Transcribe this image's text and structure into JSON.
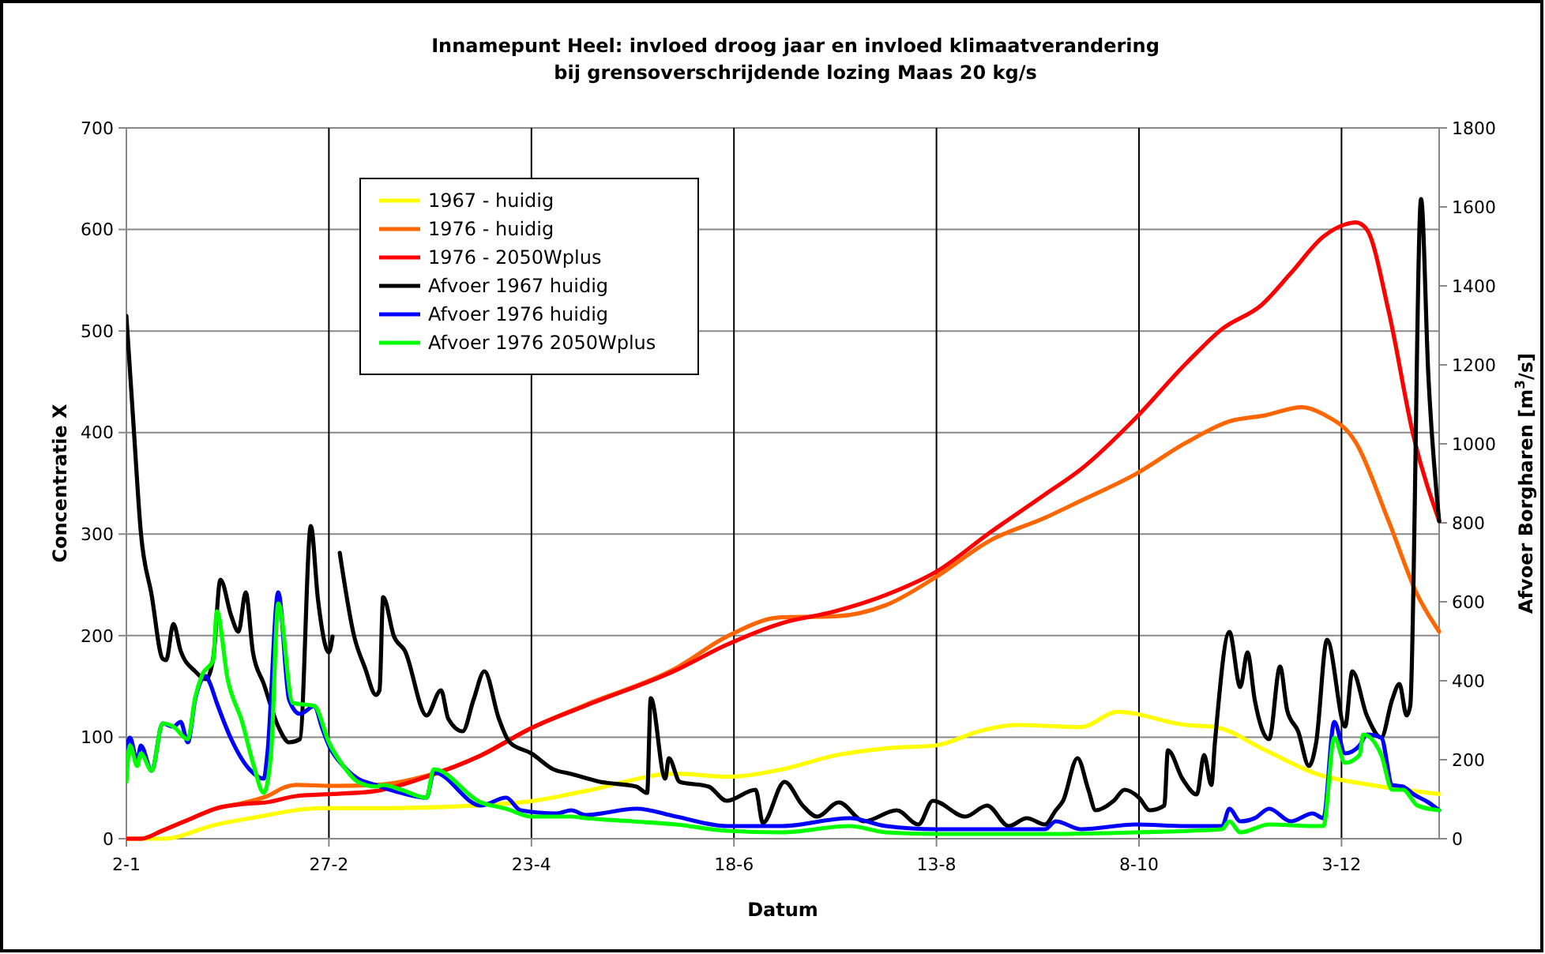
{
  "chart_data": {
    "type": "line",
    "title": "Innamepunt Heel: invloed droog jaar en invloed klimaatverandering\nbij grensoverschrijdende lozing Maas 20 kg/s",
    "xlabel": "Datum",
    "ylabel": "Concentratie X",
    "y2label": "Afvoer Borgharen [m$^{3}$/s]",
    "xlim": [
      "--01-02",
      "--12-30"
    ],
    "xticks": [
      {
        "value": "--01-02",
        "label": "2-1"
      },
      {
        "value": "--02-27",
        "label": "27-2"
      },
      {
        "value": "--04-23",
        "label": "23-4"
      },
      {
        "value": "--06-18",
        "label": "18-6"
      },
      {
        "value": "--08-13",
        "label": "13-8"
      },
      {
        "value": "--10-08",
        "label": "8-10"
      },
      {
        "value": "--12-03",
        "label": "3-12"
      }
    ],
    "ylim": [
      0,
      700
    ],
    "yticks": [
      0,
      100,
      200,
      300,
      400,
      500,
      600,
      700
    ],
    "y2lim": [
      0,
      1800
    ],
    "y2ticks": [
      0,
      200,
      400,
      600,
      800,
      1000,
      1200,
      1400,
      1600,
      1800
    ],
    "grid": true,
    "legend": "top left",
    "marker": "none",
    "line_style": "solid",
    "series": [
      {
        "name": "1967 - huidig",
        "color": "#ffff00",
        "x": [
          "--01-02",
          "--01-12",
          "--01-27",
          "--02-05",
          "--02-25",
          "--03-11",
          "--04-09",
          "--04-23",
          "--05-08",
          "--06-02",
          "--06-16",
          "--07-01",
          "--07-16",
          "--07-30",
          "--08-13",
          "--08-25",
          "--09-04",
          "--09-22",
          "--10-02",
          "--10-21",
          "--10-29",
          "--11-12",
          "--11-26",
          "--12-11",
          "--12-30"
        ],
        "values": [
          0,
          0,
          14,
          20,
          30,
          30,
          33,
          37,
          47,
          64,
          61,
          68,
          82,
          89,
          92,
          106,
          112,
          110,
          125,
          112,
          110,
          87,
          64,
          53,
          44
        ]
      },
      {
        "name": "1976 - huidig",
        "color": "#ff6600",
        "x": [
          "--01-02",
          "--01-06",
          "--01-12",
          "--01-20",
          "--01-27",
          "--02-03",
          "--02-10",
          "--02-15",
          "--02-18",
          "--02-28",
          "--03-11",
          "--03-25",
          "--04-09",
          "--04-23",
          "--05-08",
          "--06-02",
          "--06-16",
          "--07-01",
          "--07-16",
          "--07-30",
          "--08-13",
          "--08-28",
          "--09-12",
          "--09-22",
          "--10-07",
          "--10-21",
          "--11-02",
          "--11-12",
          "--11-22",
          "--11-28",
          "--12-07",
          "--12-16",
          "--12-24",
          "--12-30"
        ],
        "values": [
          0,
          0,
          8,
          20,
          30,
          35,
          42,
          51,
          53,
          52,
          53,
          62,
          82,
          109,
          132,
          168,
          199,
          218,
          219,
          230,
          258,
          294,
          316,
          333,
          359,
          390,
          411,
          417,
          425,
          418,
          390,
          313,
          240,
          204
        ]
      },
      {
        "name": "1976 - 2050Wplus",
        "color": "#ff0000",
        "x": [
          "--01-02",
          "--01-06",
          "--01-12",
          "--01-20",
          "--01-27",
          "--02-03",
          "--02-10",
          "--02-18",
          "--02-28",
          "--03-11",
          "--03-25",
          "--04-09",
          "--04-23",
          "--05-08",
          "--06-02",
          "--06-16",
          "--07-01",
          "--07-16",
          "--07-30",
          "--08-13",
          "--08-28",
          "--09-12",
          "--09-22",
          "--10-07",
          "--10-21",
          "--10-31",
          "--11-11",
          "--11-19",
          "--11-28",
          "--12-04",
          "--12-07",
          "--12-10",
          "--12-16",
          "--12-23",
          "--12-30"
        ],
        "values": [
          0,
          0,
          8,
          20,
          30,
          34,
          36,
          42,
          44,
          47,
          61,
          82,
          109,
          131,
          166,
          191,
          212,
          224,
          240,
          263,
          302,
          339,
          364,
          414,
          468,
          502,
          526,
          557,
          593,
          605,
          607,
          600,
          520,
          395,
          313
        ]
      },
      {
        "name": "Afvoer 1967 huidig",
        "color": "#000000",
        "axis": "y2",
        "x": [
          "--01-02",
          "--01-04",
          "--01-06",
          "--01-09",
          "--01-12",
          "--01-13",
          "--01-15",
          "--01-17",
          "--01-21",
          "--01-24",
          "--01-26",
          "--01-28",
          "--01-31",
          "--02-02",
          "--02-04",
          "--02-06",
          "--02-09",
          "--02-13",
          "--02-16",
          "--02-19",
          "--02-22",
          "--02-24",
          "--02-27",
          "--02-28",
          "--02-29",
          "--03-01",
          "--03-05",
          "--03-08",
          "--03-11",
          "--03-12",
          "--03-13",
          "--03-16",
          "--03-19",
          "--03-25",
          "--03-29",
          "--03-31",
          "--04-04",
          "--04-07",
          "--04-10",
          "--04-14",
          "--04-17",
          "--04-23",
          "--04-29",
          "--05-04",
          "--05-12",
          "--05-22",
          "--05-25",
          "--05-26",
          "--05-30",
          "--05-31",
          "--06-03",
          "--06-11",
          "--06-16",
          "--06-24",
          "--06-26",
          "--07-02",
          "--07-07",
          "--07-11",
          "--07-17",
          "--07-24",
          "--08-02",
          "--08-08",
          "--08-12",
          "--08-21",
          "--08-27",
          "--09-02",
          "--09-07",
          "--09-12",
          "--09-15",
          "--09-17",
          "--09-21",
          "--09-24",
          "--09-26",
          "--10-01",
          "--10-04",
          "--10-08",
          "--10-11",
          "--10-15",
          "--10-16",
          "--10-20",
          "--10-24",
          "--10-26",
          "--10-28",
          "--10-29",
          "--11-02",
          "--11-05",
          "--11-07",
          "--11-09",
          "--11-13",
          "--11-16",
          "--11-18",
          "--11-21",
          "--11-24",
          "--11-26",
          "--11-29",
          "--12-04",
          "--12-06",
          "--12-10",
          "--12-14",
          "--12-17",
          "--12-19",
          "--12-21",
          "--12-22",
          "--12-25",
          "--12-27",
          "--12-30"
        ],
        "values": [
          1324,
          1044,
          776,
          616,
          456,
          452,
          544,
          476,
          424,
          404,
          456,
          656,
          564,
          524,
          624,
          472,
          392,
          284,
          244,
          252,
          792,
          604,
          472,
          512,
          null,
          724,
          512,
          432,
          364,
          376,
          612,
          512,
          476,
          312,
          376,
          304,
          272,
          352,
          424,
          304,
          244,
          216,
          176,
          164,
          144,
          132,
          116,
          356,
          152,
          204,
          144,
          132,
          96,
          124,
          40,
          144,
          84,
          56,
          92,
          44,
          72,
          36,
          96,
          56,
          84,
          32,
          52,
          36,
          72,
          96,
          204,
          124,
          72,
          96,
          124,
          104,
          72,
          84,
          224,
          152,
          112,
          212,
          136,
          244,
          524,
          384,
          472,
          352,
          252,
          436,
          324,
          272,
          184,
          244,
          504,
          284,
          424,
          312,
          256,
          352,
          392,
          312,
          336,
          1620,
          1176,
          804
        ]
      },
      {
        "name": "Afvoer 1976 huidig",
        "color": "#0000ff",
        "axis": "y2",
        "x": [
          "--01-02",
          "--01-03",
          "--01-05",
          "--01-06",
          "--01-09",
          "--01-12",
          "--01-15",
          "--01-17",
          "--01-19",
          "--01-21",
          "--01-24",
          "--01-25",
          "--01-27",
          "--01-31",
          "--02-05",
          "--02-09",
          "--02-10",
          "--02-13",
          "--02-16",
          "--02-19",
          "--02-23",
          "--02-25",
          "--02-27",
          "--03-02",
          "--03-06",
          "--03-11",
          "--03-18",
          "--03-25",
          "--03-27",
          "--04-09",
          "--04-16",
          "--04-20",
          "--04-30",
          "--05-04",
          "--05-08",
          "--05-22",
          "--06-02",
          "--06-16",
          "--07-01",
          "--07-20",
          "--07-30",
          "--08-13",
          "--08-28",
          "--09-12",
          "--09-15",
          "--09-22",
          "--10-07",
          "--10-21",
          "--10-31",
          "--11-02",
          "--11-05",
          "--11-09",
          "--11-13",
          "--11-19",
          "--11-25",
          "--11-28",
          "--12-01",
          "--12-04",
          "--12-08",
          "--12-10",
          "--12-14",
          "--12-17",
          "--12-20",
          "--12-23",
          "--12-27",
          "--12-30"
        ],
        "values": [
          230,
          256,
          196,
          236,
          172,
          292,
          284,
          296,
          244,
          352,
          412,
          396,
          344,
          252,
          176,
          152,
          216,
          624,
          352,
          316,
          336,
          284,
          236,
          184,
          152,
          136,
          116,
          104,
          168,
          84,
          104,
          72,
          64,
          72,
          60,
          76,
          56,
          32,
          32,
          52,
          32,
          24,
          24,
          24,
          44,
          24,
          36,
          32,
          32,
          76,
          44,
          52,
          76,
          44,
          64,
          52,
          296,
          216,
          236,
          264,
          256,
          136,
          132,
          112,
          92,
          72
        ]
      },
      {
        "name": "Afvoer 1976 2050Wplus",
        "color": "#00ff00",
        "axis": "y2",
        "x": [
          "--01-02",
          "--01-03",
          "--01-05",
          "--01-06",
          "--01-09",
          "--01-12",
          "--01-15",
          "--01-19",
          "--01-21",
          "--01-23",
          "--01-26",
          "--01-27",
          "--01-30",
          "--02-03",
          "--02-06",
          "--02-09",
          "--02-11",
          "--02-13",
          "--02-17",
          "--02-23",
          "--02-27",
          "--03-02",
          "--03-06",
          "--03-11",
          "--03-13",
          "--03-18",
          "--03-25",
          "--03-27",
          "--04-09",
          "--04-16",
          "--04-23",
          "--05-04",
          "--05-08",
          "--05-21",
          "--06-02",
          "--06-16",
          "--07-01",
          "--07-20",
          "--07-30",
          "--08-13",
          "--09-12",
          "--10-07",
          "--10-31",
          "--11-02",
          "--11-05",
          "--11-13",
          "--11-25",
          "--11-28",
          "--12-01",
          "--12-04",
          "--12-08",
          "--12-09",
          "--12-14",
          "--12-17",
          "--12-20",
          "--12-24",
          "--12-30"
        ],
        "values": [
          144,
          236,
          184,
          216,
          172,
          292,
          284,
          252,
          356,
          416,
          452,
          576,
          404,
          296,
          192,
          116,
          216,
          596,
          344,
          336,
          244,
          184,
          144,
          132,
          136,
          124,
          104,
          176,
          92,
          76,
          56,
          56,
          52,
          44,
          36,
          20,
          16,
          32,
          16,
          12,
          12,
          16,
          24,
          44,
          16,
          36,
          32,
          32,
          256,
          192,
          212,
          264,
          212,
          124,
          124,
          84,
          72
        ]
      }
    ]
  }
}
